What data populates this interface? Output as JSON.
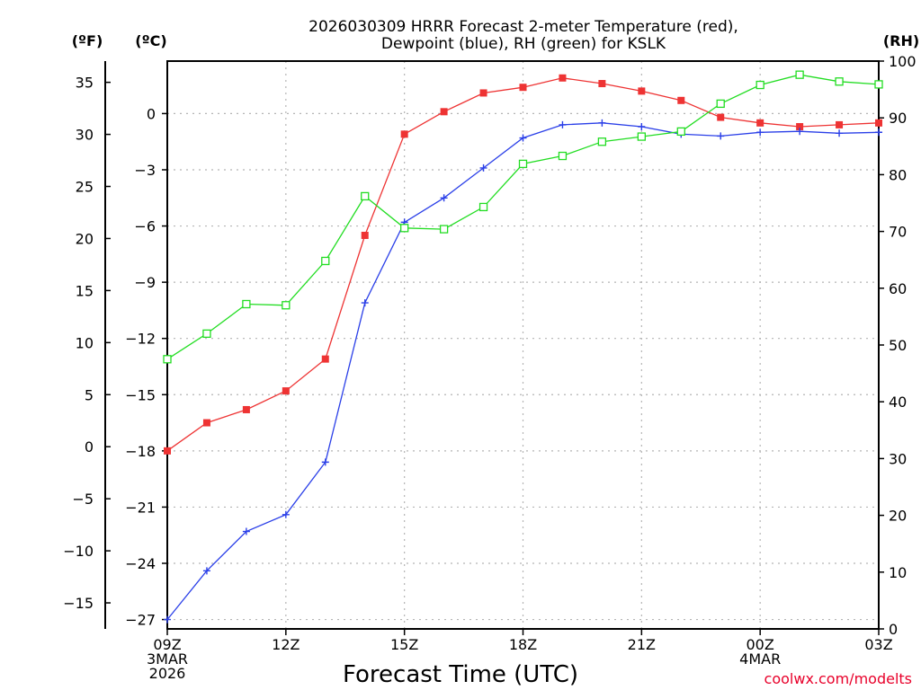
{
  "chart_data": {
    "type": "line",
    "title": [
      "2026030309 HRRR Forecast 2-meter Temperature (red),",
      "Dewpoint (blue), RH (green) for KSLK"
    ],
    "xlabel": "Forecast Time (UTC)",
    "credit": "coolwx.com/modelts",
    "units": {
      "fahrenheit": "(ºF)",
      "celsius": "(ºC)",
      "rh": "(RH)"
    },
    "x_hours": [
      0,
      1,
      2,
      3,
      4,
      5,
      6,
      7,
      8,
      9,
      10,
      11,
      12,
      13,
      14,
      15,
      16,
      17,
      18
    ],
    "x_ticks": [
      {
        "hour": 0,
        "lines": [
          "09Z",
          "3MAR",
          "2026"
        ]
      },
      {
        "hour": 3,
        "lines": [
          "12Z"
        ]
      },
      {
        "hour": 6,
        "lines": [
          "15Z"
        ]
      },
      {
        "hour": 9,
        "lines": [
          "18Z"
        ]
      },
      {
        "hour": 12,
        "lines": [
          "21Z"
        ]
      },
      {
        "hour": 15,
        "lines": [
          "00Z",
          "4MAR"
        ]
      },
      {
        "hour": 18,
        "lines": [
          "03Z"
        ]
      }
    ],
    "celsius_axis": {
      "min": -27.5,
      "max": 2.8,
      "ticks": [
        0,
        -3,
        -6,
        -9,
        -12,
        -15,
        -18,
        -21,
        -24,
        -27
      ]
    },
    "fahrenheit_ticks": [
      35,
      30,
      25,
      20,
      15,
      10,
      5,
      0,
      -5,
      -10,
      -15
    ],
    "rh_axis": {
      "min": 0,
      "max": 100,
      "ticks": [
        100,
        90,
        80,
        70,
        60,
        50,
        40,
        30,
        20,
        10,
        0
      ]
    },
    "series": [
      {
        "name": "Temperature",
        "axis": "celsius",
        "color": "#ee3333",
        "marker": "filled-square",
        "values": [
          -18.0,
          -16.5,
          -15.8,
          -14.8,
          -13.1,
          -6.5,
          -1.1,
          0.1,
          1.1,
          1.4,
          1.9,
          1.6,
          1.2,
          0.7,
          -0.2,
          -0.5,
          -0.7,
          -0.6,
          -0.5
        ]
      },
      {
        "name": "Dewpoint",
        "axis": "celsius",
        "color": "#2a3fe8",
        "marker": "plus",
        "values": [
          -27.0,
          -24.4,
          -22.3,
          -21.4,
          -18.6,
          -10.1,
          -5.8,
          -4.5,
          -2.9,
          -1.3,
          -0.6,
          -0.5,
          -0.7,
          -1.1,
          -1.2,
          -1.0,
          -0.95,
          -1.05,
          -1.0
        ]
      },
      {
        "name": "RH",
        "axis": "rh",
        "color": "#22dd22",
        "marker": "open-square",
        "values": [
          47.5,
          52,
          57.2,
          57,
          64.8,
          76.2,
          70.6,
          70.4,
          74.3,
          81.9,
          83.3,
          85.8,
          86.7,
          87.6,
          92.5,
          95.8,
          97.6,
          96.4,
          95.9
        ]
      }
    ]
  }
}
